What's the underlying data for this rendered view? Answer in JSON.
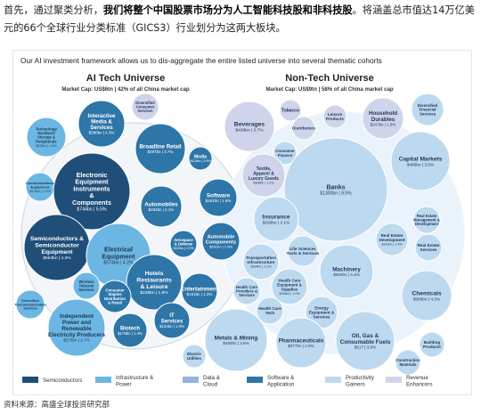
{
  "intro": {
    "p1": "首先，通过聚类分析，",
    "p2": "我们将整个中国股票市场分为人工智能科技股和非科技股",
    "p3": "。将涵盖总市值达14万亿美元的66个全球行业分类标准（GICS3）行业划分为这两大板块。"
  },
  "source": "资料来源：高盛全球投资研究部",
  "chart_data": {
    "type": "bubble",
    "title": "Our AI investment framework allows us to dis-aggregate the entire listed universe into several thematic cohorts",
    "groups": [
      {
        "name": "AI Tech Universe",
        "subtitle": "Market Cap: US$6tn | 42% of all China market cap"
      },
      {
        "name": "Non-Tech Universe",
        "subtitle": "Market Cap: US$9tn | 58% of all China market cap"
      }
    ],
    "legend": [
      {
        "key": "semi",
        "label": "Semiconductors",
        "color": "#1f4e79"
      },
      {
        "key": "infra",
        "label": "Infrastructure & Power",
        "color": "#6cb6e3"
      },
      {
        "key": "data",
        "label": "Data & Cloud",
        "color": "#93b4dc"
      },
      {
        "key": "soft",
        "label": "Software & Application",
        "color": "#2e75a8"
      },
      {
        "key": "prod",
        "label": "Productivity Gainers",
        "color": "#bcd9f0"
      },
      {
        "key": "rev",
        "label": "Revenue Enhancers",
        "color": "#cfd4ea"
      }
    ],
    "bubbles": [
      {
        "name": "Interactive Media & Services",
        "value": "$580bn | 4.3%",
        "cat": "soft"
      },
      {
        "name": "Diversified Consumer Services",
        "value": "",
        "cat": "rev"
      },
      {
        "name": "Technology Hardware Storage & Peripherals",
        "value": "$225bn | 1.6%",
        "cat": "infra"
      },
      {
        "name": "Broadline Retail",
        "value": "$497bn | 3.7%",
        "cat": "soft"
      },
      {
        "name": "Media",
        "value": "$124bn | 0.9%",
        "cat": "soft"
      },
      {
        "name": "Communications Equipment",
        "value": "$174bn | 1.3%",
        "cat": "infra"
      },
      {
        "name": "Electronic Equipment Instruments & Components",
        "value": "$744bn | 5.5%",
        "cat": "semi"
      },
      {
        "name": "Software",
        "value": "$261bn | 1.9%",
        "cat": "soft"
      },
      {
        "name": "Automobiles",
        "value": "$284bn | 2.1%",
        "cat": "soft"
      },
      {
        "name": "Semiconductors & Semiconductor Equipment",
        "value": "$583bn | 4.3%",
        "cat": "semi"
      },
      {
        "name": "Electrical Equipment",
        "value": "$574bn | 4.2%",
        "cat": "infra"
      },
      {
        "name": "Aerospace & Defense",
        "value": "$120bn | 0.9%",
        "cat": "soft"
      },
      {
        "name": "Automobile Components",
        "value": "$261bn | 1.9%",
        "cat": "soft"
      },
      {
        "name": "Wireless Telecom Services",
        "value": "",
        "cat": "infra"
      },
      {
        "name": "Hotels Restaurants & Leisure",
        "value": "$239bn | 1.8%",
        "cat": "soft"
      },
      {
        "name": "Entertainment",
        "value": "$181bn | 1.3%",
        "cat": "soft"
      },
      {
        "name": "Diversified Telecommunication Services",
        "value": "",
        "cat": "infra"
      },
      {
        "name": "Consumer Staples Distribution & Retail",
        "value": "",
        "cat": "soft"
      },
      {
        "name": "Independent Power and Renewable Electricity Producers",
        "value": "$373bn | 2.7%",
        "cat": "infra"
      },
      {
        "name": "Biotech",
        "value": "$179bn | 1.3%",
        "cat": "soft"
      },
      {
        "name": "IT Services",
        "value": "$134bn | 1.0%",
        "cat": "soft"
      },
      {
        "name": "Beverages",
        "value": "$499bn | 3.7%",
        "cat": "rev"
      },
      {
        "name": "Tobacco",
        "value": "",
        "cat": "rev"
      },
      {
        "name": "Distributors",
        "value": "",
        "cat": "rev"
      },
      {
        "name": "Leisure Products",
        "value": "",
        "cat": "rev"
      },
      {
        "name": "Household Durables",
        "value": "$247bn | 1.8%",
        "cat": "rev"
      },
      {
        "name": "Diversified Financial Services",
        "value": "",
        "cat": "prod"
      },
      {
        "name": "Capital Markets",
        "value": "$485bn | 3.6%",
        "cat": "prod"
      },
      {
        "name": "Consumer Finance",
        "value": "",
        "cat": "prod"
      },
      {
        "name": "Textile, Apparel & Luxury Goods",
        "value": "$166bn | 1.2%",
        "cat": "rev"
      },
      {
        "name": "Banks",
        "value": "$1300bn | 9.5%",
        "cat": "prod"
      },
      {
        "name": "Insurance",
        "value": "$290bn | 2.1%",
        "cat": "prod"
      },
      {
        "name": "Real Estate Management & Development",
        "value": "",
        "cat": "prod"
      },
      {
        "name": "Real Estate Development",
        "value": "$191bn | 1.4%",
        "cat": "prod"
      },
      {
        "name": "Real Estate Services",
        "value": "",
        "cat": "prod"
      },
      {
        "name": "Life Sciences Tools & Services",
        "value": "",
        "cat": "prod"
      },
      {
        "name": "Transportation Infrastructure",
        "value": "$154bn | 1.1%",
        "cat": "prod"
      },
      {
        "name": "Machinery",
        "value": "$594bn | 4.4%",
        "cat": "prod"
      },
      {
        "name": "Health Care Providers & Services",
        "value": "",
        "cat": "prod"
      },
      {
        "name": "Health Care Equipment & Supplies",
        "value": "$136bn | 1.0%",
        "cat": "prod"
      },
      {
        "name": "Chemicals",
        "value": "$589bn | 4.3%",
        "cat": "prod"
      },
      {
        "name": "Health Care Tech",
        "value": "",
        "cat": "prod"
      },
      {
        "name": "Energy Equipment & Services",
        "value": "",
        "cat": "prod"
      },
      {
        "name": "Metals & Mining",
        "value": "$490bn | 3.6%",
        "cat": "prod"
      },
      {
        "name": "Pharmaceuticals",
        "value": "$377bn | 2.8%",
        "cat": "prod"
      },
      {
        "name": "Oil, Gas & Consumable Fuels",
        "value": "$517 | 3.8%",
        "cat": "prod"
      },
      {
        "name": "Building Products",
        "value": "",
        "cat": "prod"
      },
      {
        "name": "Electric Utilities",
        "value": "",
        "cat": "prod"
      },
      {
        "name": "Construction Materials",
        "value": "",
        "cat": "prod"
      }
    ]
  }
}
